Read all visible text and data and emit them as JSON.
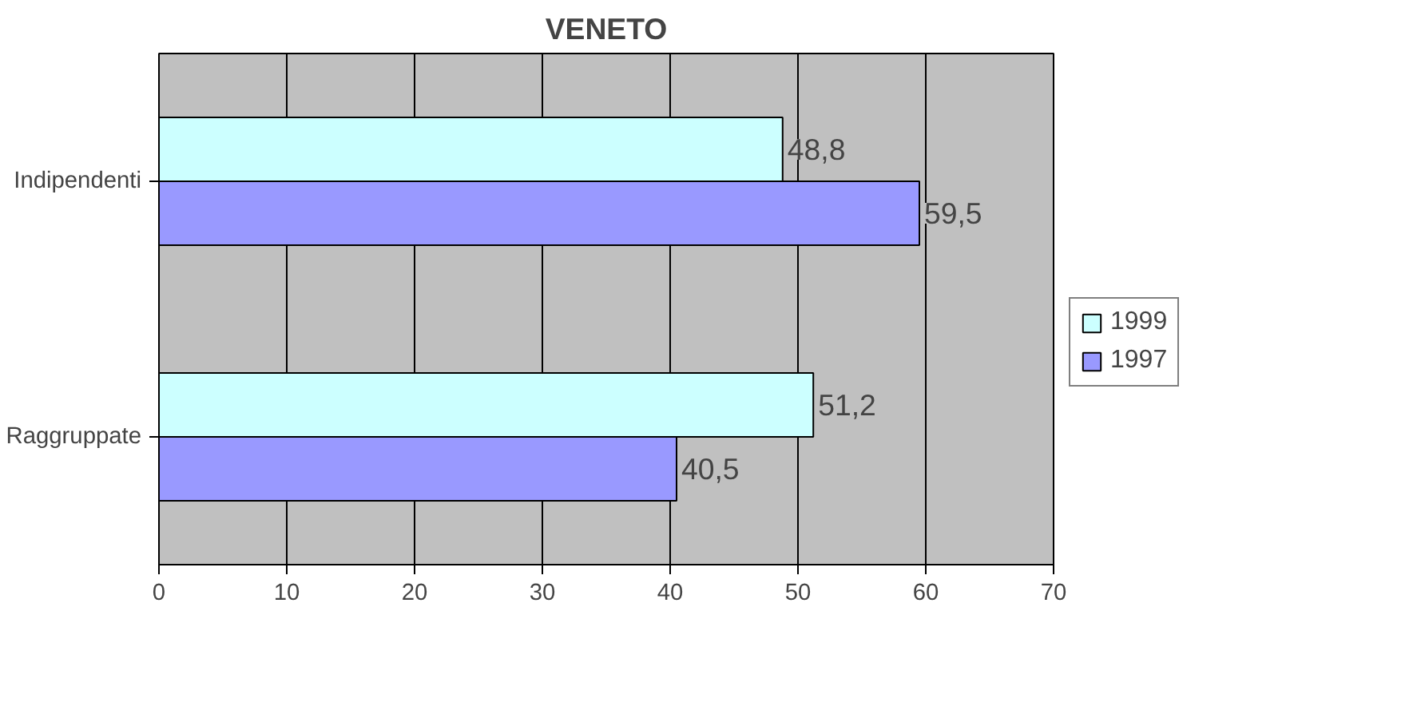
{
  "chart_data": {
    "type": "bar",
    "orientation": "horizontal",
    "title": "VENETO",
    "categories": [
      "Indipendenti",
      "Raggruppate"
    ],
    "series": [
      {
        "name": "1999",
        "color": "#ccffff",
        "values": [
          48.8,
          51.2
        ],
        "value_labels": [
          "48,8",
          "51,2"
        ]
      },
      {
        "name": "1997",
        "color": "#9999ff",
        "values": [
          59.5,
          40.5
        ],
        "value_labels": [
          "59,5",
          "40,5"
        ]
      }
    ],
    "xlim": [
      0,
      70
    ],
    "xticks": [
      0,
      10,
      20,
      30,
      40,
      50,
      60,
      70
    ],
    "grid": "x",
    "legend": "right"
  }
}
